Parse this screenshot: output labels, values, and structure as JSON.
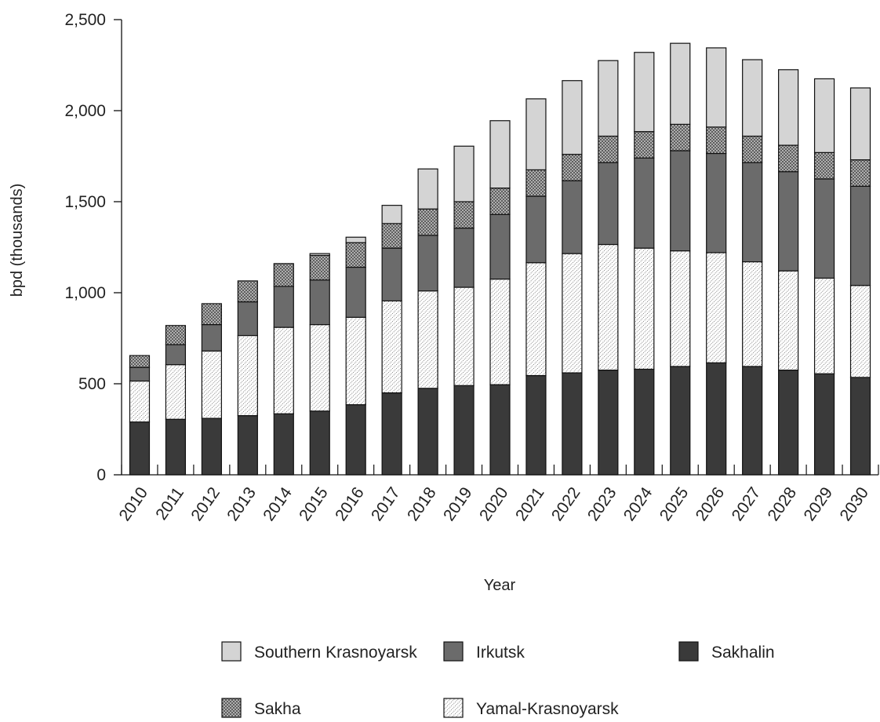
{
  "chart_data": {
    "type": "bar",
    "stacked": true,
    "title": "",
    "xlabel": "Year",
    "ylabel": "bpd (thousands)",
    "ylim": [
      0,
      2500
    ],
    "yticks": [
      0,
      500,
      1000,
      1500,
      2000,
      2500
    ],
    "ytick_labels": [
      "0",
      "500",
      "1,000",
      "1,500",
      "2,000",
      "2,500"
    ],
    "grid": false,
    "legend_position": "bottom",
    "categories": [
      "2010",
      "2011",
      "2012",
      "2013",
      "2014",
      "2015",
      "2016",
      "2017",
      "2018",
      "2019",
      "2020",
      "2021",
      "2022",
      "2023",
      "2024",
      "2025",
      "2026",
      "2027",
      "2028",
      "2029",
      "2030"
    ],
    "series": [
      {
        "name": "Sakhalin",
        "fill": "solid",
        "color": "#3a3a3a",
        "values": [
          290,
          305,
          310,
          325,
          335,
          350,
          385,
          450,
          475,
          490,
          495,
          545,
          560,
          575,
          580,
          595,
          615,
          595,
          575,
          555,
          535
        ]
      },
      {
        "name": "Yamal-Krasnoyarsk",
        "fill": "dots",
        "color": "#ffffff",
        "values": [
          225,
          300,
          370,
          440,
          475,
          475,
          480,
          505,
          535,
          540,
          580,
          620,
          655,
          690,
          665,
          635,
          605,
          575,
          545,
          525,
          505
        ]
      },
      {
        "name": "Irkutsk",
        "fill": "solid",
        "color": "#6b6b6b",
        "values": [
          75,
          110,
          145,
          185,
          225,
          245,
          275,
          290,
          305,
          325,
          355,
          365,
          400,
          450,
          495,
          550,
          545,
          545,
          545,
          545,
          545
        ]
      },
      {
        "name": "Sakha",
        "fill": "crosshatch",
        "color": "#a8a8a8",
        "values": [
          65,
          105,
          115,
          115,
          125,
          135,
          135,
          135,
          145,
          145,
          145,
          145,
          145,
          145,
          145,
          145,
          145,
          145,
          145,
          145,
          145
        ]
      },
      {
        "name": "Southern Krasnoyarsk",
        "fill": "solid",
        "color": "#d4d4d4",
        "values": [
          0,
          0,
          0,
          0,
          0,
          10,
          30,
          100,
          220,
          305,
          370,
          390,
          405,
          415,
          435,
          445,
          435,
          420,
          415,
          405,
          395
        ]
      }
    ],
    "legend": [
      {
        "name": "Southern Krasnoyarsk",
        "series_index": 4
      },
      {
        "name": "Irkutsk",
        "series_index": 2
      },
      {
        "name": "Sakhalin",
        "series_index": 0
      },
      {
        "name": "Sakha",
        "series_index": 3
      },
      {
        "name": "Yamal-Krasnoyarsk",
        "series_index": 1
      }
    ]
  }
}
